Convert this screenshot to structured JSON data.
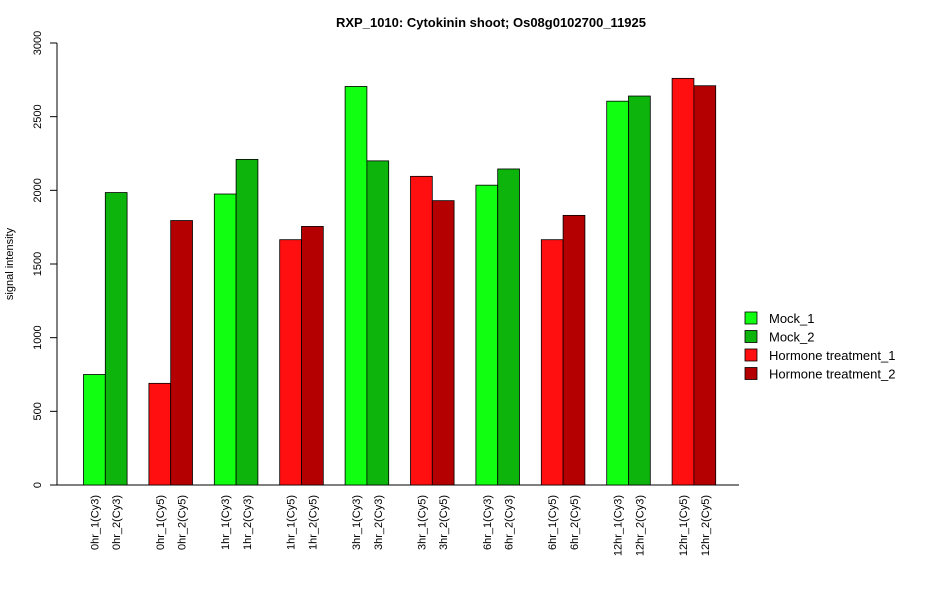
{
  "chart_data": {
    "type": "bar",
    "title": "RXP_1010: Cytokinin shoot; Os08g0102700_11925",
    "ylabel": "signal intensity",
    "xlabel": "",
    "ylim": [
      0,
      3000
    ],
    "yticks": [
      0,
      500,
      1000,
      1500,
      2000,
      2500,
      3000
    ],
    "legend_position": "right",
    "legend": [
      {
        "name": "Mock_1",
        "color": "#11ff11"
      },
      {
        "name": "Mock_2",
        "color": "#0cb40c"
      },
      {
        "name": "Hormone treatment_1",
        "color": "#ff0f0f"
      },
      {
        "name": "Hormone treatment_2",
        "color": "#b40000"
      }
    ],
    "bars": [
      {
        "label": "0hr_1(Cy3)",
        "value": 750,
        "color": "#11ff11"
      },
      {
        "label": "0hr_2(Cy3)",
        "value": 1985,
        "color": "#0cb40c"
      },
      {
        "label": "0hr_1(Cy5)",
        "value": 690,
        "color": "#ff0f0f"
      },
      {
        "label": "0hr_2(Cy5)",
        "value": 1795,
        "color": "#b40000"
      },
      {
        "label": "1hr_1(Cy3)",
        "value": 1975,
        "color": "#11ff11"
      },
      {
        "label": "1hr_2(Cy3)",
        "value": 2210,
        "color": "#0cb40c"
      },
      {
        "label": "1hr_1(Cy5)",
        "value": 1665,
        "color": "#ff0f0f"
      },
      {
        "label": "1hr_2(Cy5)",
        "value": 1755,
        "color": "#b40000"
      },
      {
        "label": "3hr_1(Cy3)",
        "value": 2705,
        "color": "#11ff11"
      },
      {
        "label": "3hr_2(Cy3)",
        "value": 2200,
        "color": "#0cb40c"
      },
      {
        "label": "3hr_1(Cy5)",
        "value": 2095,
        "color": "#ff0f0f"
      },
      {
        "label": "3hr_2(Cy5)",
        "value": 1930,
        "color": "#b40000"
      },
      {
        "label": "6hr_1(Cy3)",
        "value": 2035,
        "color": "#11ff11"
      },
      {
        "label": "6hr_2(Cy3)",
        "value": 2145,
        "color": "#0cb40c"
      },
      {
        "label": "6hr_1(Cy5)",
        "value": 1665,
        "color": "#ff0f0f"
      },
      {
        "label": "6hr_2(Cy5)",
        "value": 1830,
        "color": "#b40000"
      },
      {
        "label": "12hr_1(Cy3)",
        "value": 2605,
        "color": "#11ff11"
      },
      {
        "label": "12hr_2(Cy3)",
        "value": 2640,
        "color": "#0cb40c"
      },
      {
        "label": "12hr_1(Cy5)",
        "value": 2760,
        "color": "#ff0f0f"
      },
      {
        "label": "12hr_2(Cy5)",
        "value": 2710,
        "color": "#b40000"
      }
    ]
  }
}
